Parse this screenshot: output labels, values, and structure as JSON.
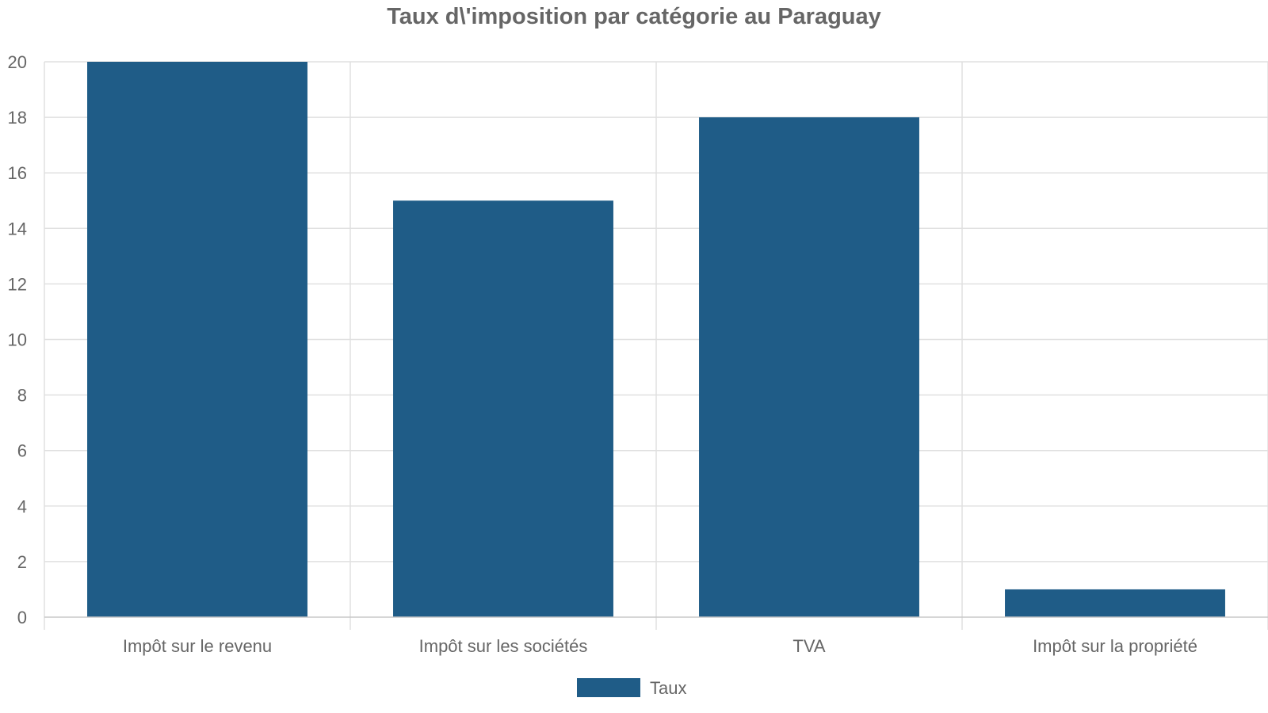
{
  "chart_data": {
    "type": "bar",
    "title": "Taux d\\'imposition par catégorie au Paraguay",
    "categories": [
      "Impôt sur le revenu",
      "Impôt sur les sociétés",
      "TVA",
      "Impôt sur la propriété"
    ],
    "series": [
      {
        "name": "Taux",
        "color": "#1f5c87",
        "values": [
          20,
          15,
          18,
          1
        ]
      }
    ],
    "ylim": [
      0,
      20
    ],
    "yticks": [
      0,
      2,
      4,
      6,
      8,
      10,
      12,
      14,
      16,
      18,
      20
    ],
    "grid": true,
    "legend_position": "bottom"
  }
}
